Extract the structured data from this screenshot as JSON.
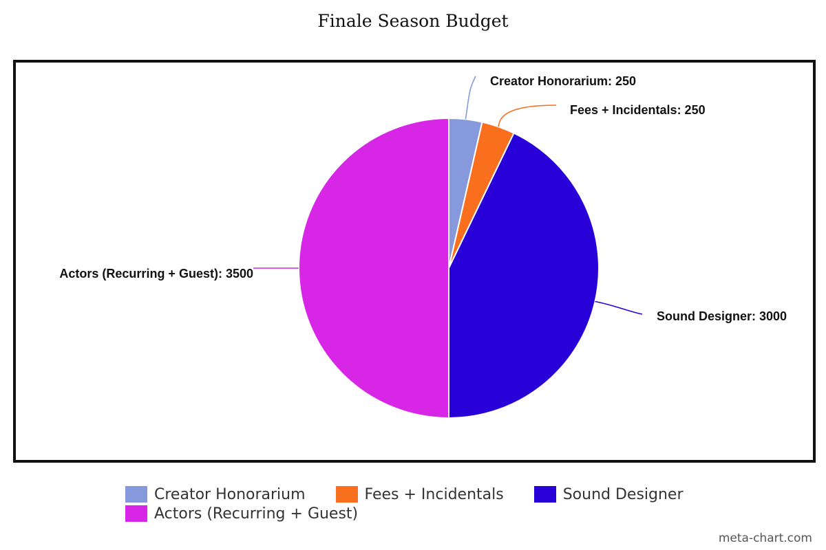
{
  "chart_data": {
    "type": "pie",
    "title": "Finale Season Budget",
    "slices": [
      {
        "label": "Creator Honorarium",
        "value": 250,
        "display": "Creator Honorarium: 250",
        "color": "#8599dc"
      },
      {
        "label": "Fees + Incidentals",
        "value": 250,
        "display": "Fees + Incidentals: 250",
        "color": "#fa6f1e"
      },
      {
        "label": "Sound Designer",
        "value": 3000,
        "display": "Sound Designer: 3000",
        "color": "#2800d8"
      },
      {
        "label": "Actors (Recurring + Guest)",
        "value": 3500,
        "display": "Actors (Recurring + Guest): 3500",
        "color": "#d826e6"
      }
    ],
    "legend_position": "bottom"
  },
  "watermark": "meta-chart.com"
}
